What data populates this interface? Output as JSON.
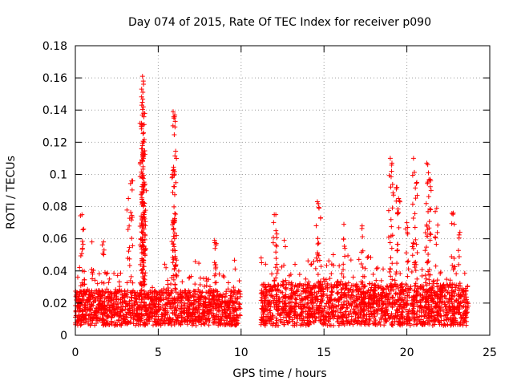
{
  "chart_data": {
    "type": "scatter",
    "title": "Day 074 of 2015, Rate Of TEC Index for receiver p090",
    "xlabel": "GPS time / hours",
    "ylabel": "ROTI / TECUs",
    "xlim": [
      0,
      25
    ],
    "ylim": [
      0,
      0.18
    ],
    "xticks": [
      0,
      5,
      10,
      15,
      20,
      25
    ],
    "xtick_labels": [
      "0",
      "5",
      "10",
      "15",
      "20",
      "25"
    ],
    "yticks": [
      0,
      0.02,
      0.04,
      0.06,
      0.08,
      0.1,
      0.12,
      0.14,
      0.16,
      0.18
    ],
    "ytick_labels": [
      "0",
      "0.02",
      "0.04",
      "0.06",
      "0.08",
      "0.1",
      "0.12",
      "0.14",
      "0.16",
      "0.18"
    ],
    "grid": true,
    "marker": "+",
    "series": [
      {
        "name": "ROTI",
        "color": "#ff0000",
        "segments": [
          {
            "x_start": 0.0,
            "x_end": 9.95,
            "base_low": 0.006,
            "base_high": 0.028
          },
          {
            "x_start": 11.2,
            "x_end": 23.7,
            "base_low": 0.006,
            "base_high": 0.032
          }
        ],
        "peaks": [
          [
            0.4,
            0.075
          ],
          [
            0.5,
            0.066
          ],
          [
            1.0,
            0.058
          ],
          [
            1.7,
            0.058
          ],
          [
            3.2,
            0.085
          ],
          [
            3.4,
            0.096
          ],
          [
            4.05,
            0.161
          ],
          [
            4.1,
            0.158
          ],
          [
            4.0,
            0.153
          ],
          [
            4.1,
            0.142
          ],
          [
            4.15,
            0.131
          ],
          [
            4.0,
            0.116
          ],
          [
            4.1,
            0.113
          ],
          [
            4.05,
            0.098
          ],
          [
            4.2,
            0.094
          ],
          [
            4.15,
            0.069
          ],
          [
            5.9,
            0.139
          ],
          [
            6.0,
            0.137
          ],
          [
            5.95,
            0.135
          ],
          [
            6.0,
            0.071
          ],
          [
            6.1,
            0.062
          ],
          [
            8.4,
            0.059
          ],
          [
            8.5,
            0.057
          ],
          [
            12.0,
            0.075
          ],
          [
            12.1,
            0.065
          ],
          [
            12.6,
            0.059
          ],
          [
            14.6,
            0.083
          ],
          [
            14.7,
            0.079
          ],
          [
            16.2,
            0.069
          ],
          [
            17.3,
            0.068
          ],
          [
            19.0,
            0.11
          ],
          [
            19.1,
            0.107
          ],
          [
            19.4,
            0.092
          ],
          [
            19.5,
            0.085
          ],
          [
            20.0,
            0.07
          ],
          [
            20.4,
            0.11
          ],
          [
            20.6,
            0.095
          ],
          [
            21.2,
            0.107
          ],
          [
            21.3,
            0.101
          ],
          [
            21.4,
            0.097
          ],
          [
            21.8,
            0.079
          ],
          [
            22.8,
            0.076
          ],
          [
            23.2,
            0.064
          ]
        ]
      }
    ]
  }
}
